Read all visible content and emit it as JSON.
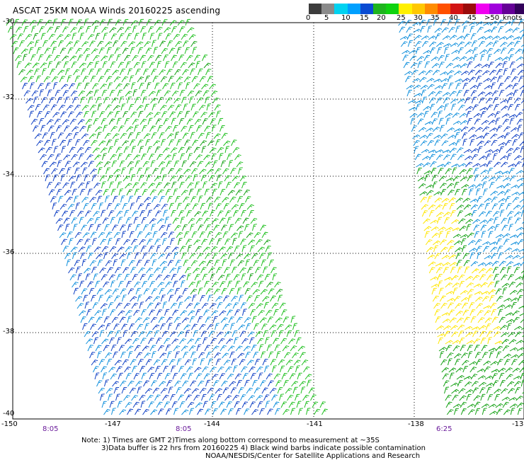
{
  "title": "ASCAT 25KM NOAA Winds 20160225 ascending",
  "colorbar": {
    "colors": [
      "#3c3c3c",
      "#8a8a8a",
      "#00d2f0",
      "#00a0ff",
      "#0a4bd2",
      "#1eb41e",
      "#0fd20f",
      "#fff000",
      "#ffc800",
      "#ff8c00",
      "#ff5000",
      "#d21414",
      "#9b0a0a",
      "#f000f0",
      "#a000dc",
      "#640096",
      "#32005a"
    ],
    "labels": [
      "0",
      "5",
      "10",
      "15",
      "20",
      "25",
      "30",
      "35",
      "40",
      "45",
      "50",
      "knots"
    ],
    "label_prefix_last": ">",
    "colors_note": "colors span 0 to >50 knots"
  },
  "latitude_labels": [
    "-30",
    "-32",
    "-34",
    "-36",
    "-38",
    "-40"
  ],
  "longitude_labels": [
    "-150",
    "-147",
    "-144",
    "-141",
    "-138",
    "-13"
  ],
  "time_labels": [
    "8:05",
    "8:05",
    "6:25"
  ],
  "notes": {
    "line1": "Note: 1) Times are GMT 2)Times along bottom correspond to measurement at ~35S",
    "line2": "3)Data buffer is 22 hrs from 20160225 4) Black wind barbs indicate possible contamination",
    "line3": "NOAA/NESDIS/Center for Satellite Applications and Research"
  },
  "swaths": [
    {
      "name": "8:05 pass",
      "zones": [
        {
          "color": "#1fbf1f",
          "weight": 5
        },
        {
          "color": "#0e3fc4",
          "weight": 2
        },
        {
          "color": "#0f8fdc",
          "weight": 2
        },
        {
          "color": "#12a012",
          "weight": 1
        }
      ]
    },
    {
      "name": "6:25 pass",
      "zones": [
        {
          "color": "#0f8fdc",
          "weight": 2
        },
        {
          "color": "#0e3fc4",
          "weight": 2
        },
        {
          "color": "#12a012",
          "weight": 2
        },
        {
          "color": "#ffe600",
          "weight": 1
        }
      ]
    }
  ]
}
